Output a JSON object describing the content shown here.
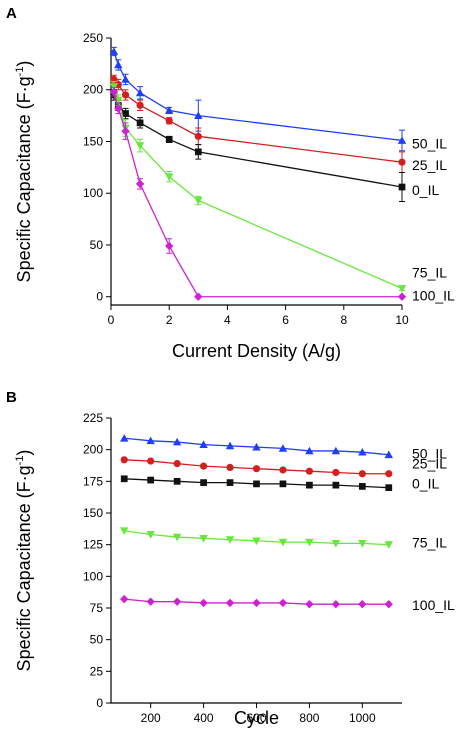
{
  "chart_data": [
    {
      "panel": "A",
      "type": "line",
      "xlabel": "Current Density (A/g)",
      "ylabel_main": "Specific Capacitance (F·g",
      "ylabel_sup": "-1",
      "ylabel_close": ")",
      "xlim": [
        0,
        10
      ],
      "ylim": [
        -8,
        250
      ],
      "xticks": [
        0,
        2,
        4,
        6,
        8,
        10
      ],
      "yticks": [
        0,
        50,
        100,
        150,
        200,
        250
      ],
      "series": [
        {
          "name": "50_IL",
          "color": "#1f3ff5",
          "marker": "triangle-up",
          "x": [
            0.1,
            0.25,
            0.5,
            1,
            2,
            3,
            10
          ],
          "y": [
            237,
            224,
            210,
            197,
            180,
            175,
            151
          ],
          "err": [
            4,
            5,
            5,
            6,
            3,
            15,
            10
          ]
        },
        {
          "name": "25_IL",
          "color": "#d31f1f",
          "marker": "circle",
          "x": [
            0.1,
            0.25,
            0.5,
            1,
            2,
            3,
            10
          ],
          "y": [
            210,
            205,
            195,
            185,
            170,
            155,
            130
          ],
          "err": [
            4,
            5,
            5,
            5,
            3,
            8,
            10
          ]
        },
        {
          "name": "0_IL",
          "color": "#111111",
          "marker": "square",
          "x": [
            0.1,
            0.25,
            0.5,
            1,
            2,
            3,
            10
          ],
          "y": [
            195,
            185,
            177,
            168,
            152,
            140,
            106
          ],
          "err": [
            5,
            5,
            5,
            5,
            3,
            7,
            14
          ]
        },
        {
          "name": "75_IL",
          "color": "#66e83a",
          "marker": "triangle-down",
          "x": [
            0.1,
            0.25,
            0.5,
            1,
            2,
            3,
            10
          ],
          "y": [
            203,
            190,
            163,
            146,
            116,
            93,
            8
          ],
          "err": [
            5,
            5,
            8,
            6,
            5,
            4,
            2
          ]
        },
        {
          "name": "100_IL",
          "color": "#cc22d4",
          "marker": "diamond",
          "x": [
            0.1,
            0.25,
            0.5,
            1,
            2,
            3,
            10
          ],
          "y": [
            198,
            182,
            160,
            109,
            49,
            0,
            0
          ],
          "err": [
            4,
            5,
            8,
            5,
            7,
            0,
            0
          ]
        }
      ]
    },
    {
      "panel": "B",
      "type": "line",
      "xlabel": "Cycle",
      "ylabel_main": "Specific Capacitance (F·g",
      "ylabel_sup": "-1",
      "ylabel_close": ")",
      "xlim": [
        50,
        1150
      ],
      "ylim": [
        0,
        225
      ],
      "xticks": [
        200,
        400,
        600,
        800,
        1000
      ],
      "yticks": [
        0,
        25,
        50,
        75,
        100,
        125,
        150,
        175,
        200,
        225
      ],
      "series": [
        {
          "name": "50_IL",
          "color": "#1f3ff5",
          "marker": "triangle-up",
          "x": [
            100,
            200,
            300,
            400,
            500,
            600,
            700,
            800,
            900,
            1000,
            1100
          ],
          "y": [
            209,
            207,
            206,
            204,
            203,
            202,
            201,
            199,
            199,
            198,
            196
          ]
        },
        {
          "name": "25_IL",
          "color": "#d31f1f",
          "marker": "circle",
          "x": [
            100,
            200,
            300,
            400,
            500,
            600,
            700,
            800,
            900,
            1000,
            1100
          ],
          "y": [
            192,
            191,
            189,
            187,
            186,
            185,
            184,
            183,
            182,
            181,
            181
          ]
        },
        {
          "name": "0_IL",
          "color": "#111111",
          "marker": "square",
          "x": [
            100,
            200,
            300,
            400,
            500,
            600,
            700,
            800,
            900,
            1000,
            1100
          ],
          "y": [
            177,
            176,
            175,
            174,
            174,
            173,
            173,
            172,
            172,
            171,
            170
          ]
        },
        {
          "name": "75_IL",
          "color": "#66e83a",
          "marker": "triangle-down",
          "x": [
            100,
            200,
            300,
            400,
            500,
            600,
            700,
            800,
            900,
            1000,
            1100
          ],
          "y": [
            136,
            133,
            131,
            130,
            129,
            128,
            127,
            127,
            126,
            126,
            125
          ]
        },
        {
          "name": "100_IL",
          "color": "#cc22d4",
          "marker": "diamond",
          "x": [
            100,
            200,
            300,
            400,
            500,
            600,
            700,
            800,
            900,
            1000,
            1100
          ],
          "y": [
            82,
            80,
            80,
            79,
            79,
            79,
            79,
            78,
            78,
            78,
            78
          ]
        }
      ]
    }
  ]
}
